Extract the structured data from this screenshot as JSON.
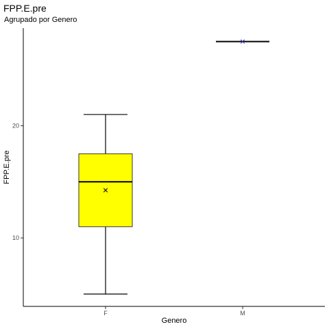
{
  "chart_data": {
    "type": "boxplot",
    "title": "FPP.E.pre",
    "subtitle": "Agrupado por Genero",
    "xlabel": "Genero",
    "ylabel": "FPP.E.pre",
    "categories": [
      "F",
      "M"
    ],
    "y_ticks": [
      10,
      20
    ],
    "ylim": [
      3.9,
      28.7
    ],
    "grid": false,
    "boxes": [
      {
        "category": "F",
        "min": 5,
        "q1": 11,
        "median": 15,
        "q3": 17.5,
        "max": 21,
        "mean": 14.25,
        "fill": "#ffff00",
        "mean_marker_color": "#000000"
      },
      {
        "category": "M",
        "min": 27.5,
        "q1": 27.5,
        "median": 27.5,
        "q3": 27.5,
        "max": 27.5,
        "mean": 27.5,
        "fill": "#ffff00",
        "mean_marker_color": "#2b2bb8"
      }
    ]
  }
}
